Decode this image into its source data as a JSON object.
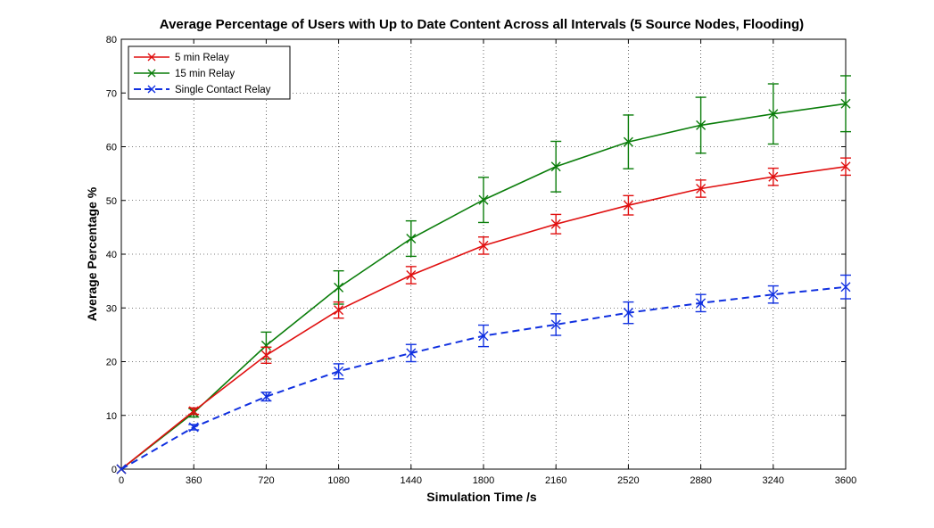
{
  "chart_data": {
    "type": "line",
    "title": "Average Percentage of Users with Up to Date Content Across all Intervals (5 Source Nodes, Flooding)",
    "xlabel": "Simulation Time /s",
    "ylabel": "Average Percentage %",
    "xlim": [
      0,
      3600
    ],
    "ylim": [
      0,
      80
    ],
    "xticks": [
      0,
      360,
      720,
      1080,
      1440,
      1800,
      2160,
      2520,
      2880,
      3240,
      3600
    ],
    "yticks": [
      0,
      10,
      20,
      30,
      40,
      50,
      60,
      70,
      80
    ],
    "grid": true,
    "legend_position": "top-left",
    "x": [
      0,
      360,
      720,
      1080,
      1440,
      1800,
      2160,
      2520,
      2880,
      3240,
      3600
    ],
    "series": [
      {
        "name": "5 min Relay",
        "color": "#e01010",
        "line_style": "solid",
        "marker": "x",
        "values": [
          0,
          10.8,
          21.2,
          29.6,
          36.1,
          41.6,
          45.6,
          49.1,
          52.2,
          54.4,
          56.3
        ],
        "err": [
          0,
          0.6,
          1.5,
          1.5,
          1.6,
          1.6,
          1.8,
          1.8,
          1.6,
          1.6,
          1.6
        ]
      },
      {
        "name": "15 min Relay",
        "color": "#0a7d0a",
        "line_style": "solid",
        "marker": "x",
        "values": [
          0,
          10.5,
          23.0,
          33.8,
          42.9,
          50.1,
          56.3,
          60.9,
          64.0,
          66.1,
          68.0
        ],
        "err": [
          0,
          0.8,
          2.5,
          3.1,
          3.3,
          4.2,
          4.7,
          5.0,
          5.2,
          5.6,
          5.2
        ]
      },
      {
        "name": "Single Contact Relay",
        "color": "#1030e0",
        "line_style": "dashed",
        "marker": "x",
        "values": [
          0,
          7.8,
          13.5,
          18.2,
          21.6,
          24.8,
          26.9,
          29.1,
          30.9,
          32.5,
          33.9
        ],
        "err": [
          0,
          0.5,
          0.8,
          1.4,
          1.6,
          2.0,
          2.0,
          2.0,
          1.6,
          1.6,
          2.2
        ]
      }
    ]
  }
}
